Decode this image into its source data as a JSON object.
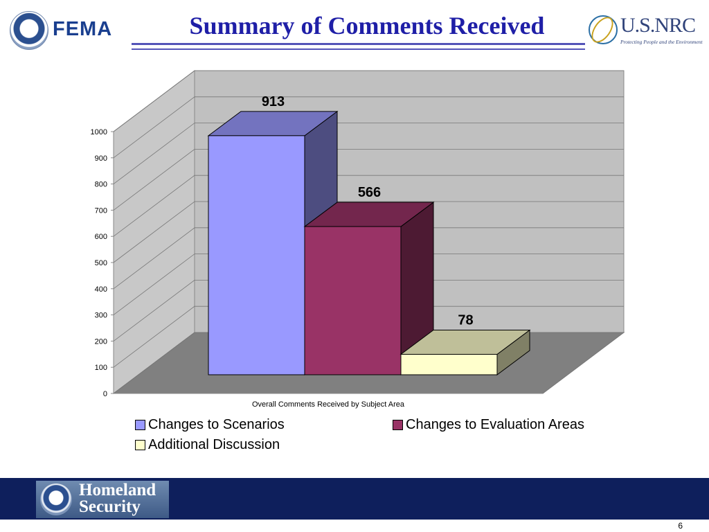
{
  "header": {
    "title": "Summary of Comments Received",
    "fema_logo_text": "FEMA",
    "nrc_logo_text": "U.S.NRC",
    "nrc_tagline": "Protecting People and the Environment"
  },
  "footer": {
    "logo_line1": "Homeland",
    "logo_line2": "Security",
    "page_number": "6"
  },
  "chart_data": {
    "type": "bar",
    "style": "3d",
    "xlabel": "Overall Comments Received by Subject Area",
    "ylabel": "",
    "ylim": [
      0,
      1000
    ],
    "yticks": [
      0,
      100,
      200,
      300,
      400,
      500,
      600,
      700,
      800,
      900,
      1000
    ],
    "grid": true,
    "legend_position": "bottom",
    "series": [
      {
        "name": "Changes to Scenarios",
        "value": 913,
        "color": "#9999ff"
      },
      {
        "name": "Changes to Evaluation Areas",
        "value": 566,
        "color": "#993366"
      },
      {
        "name": "Additional Discussion",
        "value": 78,
        "color": "#ffffcc"
      }
    ],
    "wall_color": "#c0c0c0",
    "floor_color": "#808080"
  }
}
